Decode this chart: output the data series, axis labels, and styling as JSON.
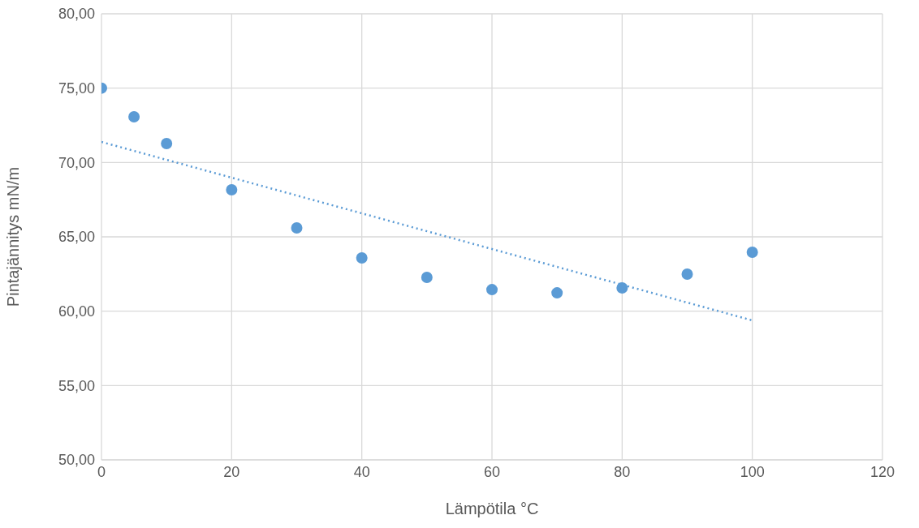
{
  "chart_data": {
    "type": "scatter",
    "xlabel": "Lämpötila °C",
    "ylabel": "Pintajännitys mN/m",
    "xlim": [
      0,
      120
    ],
    "xticks": [
      0,
      20,
      40,
      60,
      80,
      100,
      120
    ],
    "ylim": [
      50,
      80
    ],
    "yticks": [
      {
        "value": 50,
        "label": "50,00"
      },
      {
        "value": 55,
        "label": "55,00"
      },
      {
        "value": 60,
        "label": "60,00"
      },
      {
        "value": 65,
        "label": "65,00"
      },
      {
        "value": 70,
        "label": "70,00"
      },
      {
        "value": 75,
        "label": "75,00"
      },
      {
        "value": 80,
        "label": "80,00"
      }
    ],
    "grid": true,
    "series": [
      {
        "marker": "circle",
        "color": "#5b9bd5",
        "x": [
          0,
          5,
          10,
          20,
          30,
          40,
          50,
          60,
          70,
          80,
          90,
          100
        ],
        "values": [
          75.0,
          73.07,
          71.27,
          68.16,
          65.6,
          63.58,
          62.27,
          61.45,
          61.23,
          61.56,
          62.49,
          63.96
        ]
      },
      {
        "type": "line",
        "color": "#5b9bd5",
        "line_style": "dotted",
        "x": [
          0,
          100
        ],
        "values": [
          71.38,
          59.38
        ]
      }
    ]
  }
}
